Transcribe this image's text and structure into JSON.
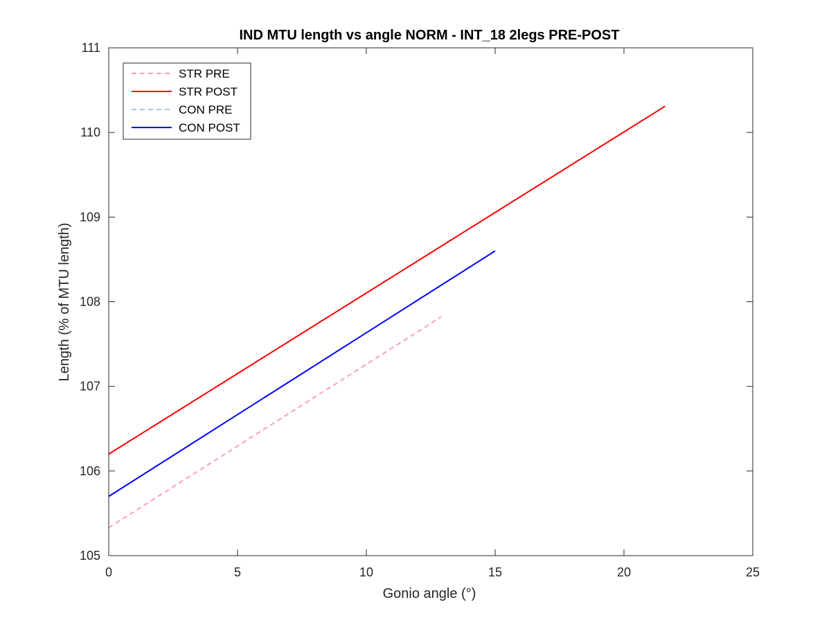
{
  "chart_data": {
    "type": "line",
    "title": "IND MTU length vs angle NORM - INT_18 2legs PRE-POST",
    "xlabel": "Gonio angle (°)",
    "ylabel": "Length (% of MTU length)",
    "xlim": [
      0,
      25
    ],
    "ylim": [
      105,
      111
    ],
    "xticks": [
      0,
      5,
      10,
      15,
      20,
      25
    ],
    "yticks": [
      105,
      106,
      107,
      108,
      109,
      110,
      111
    ],
    "grid": false,
    "legend_position": "top-left",
    "series": [
      {
        "name": "STR PRE",
        "color": "#ff99cc",
        "style": "dashed",
        "x": [
          0,
          12.9
        ],
        "y": [
          105.33,
          107.82
        ]
      },
      {
        "name": "STR POST",
        "color": "#ff0000",
        "style": "solid",
        "x": [
          0,
          21.6
        ],
        "y": [
          106.2,
          110.31
        ]
      },
      {
        "name": "CON PRE",
        "color": "#99ccdd",
        "style": "dashed",
        "x": [],
        "y": []
      },
      {
        "name": "CON POST",
        "color": "#0000ff",
        "style": "solid",
        "x": [
          0,
          15
        ],
        "y": [
          105.7,
          108.6
        ]
      }
    ]
  }
}
